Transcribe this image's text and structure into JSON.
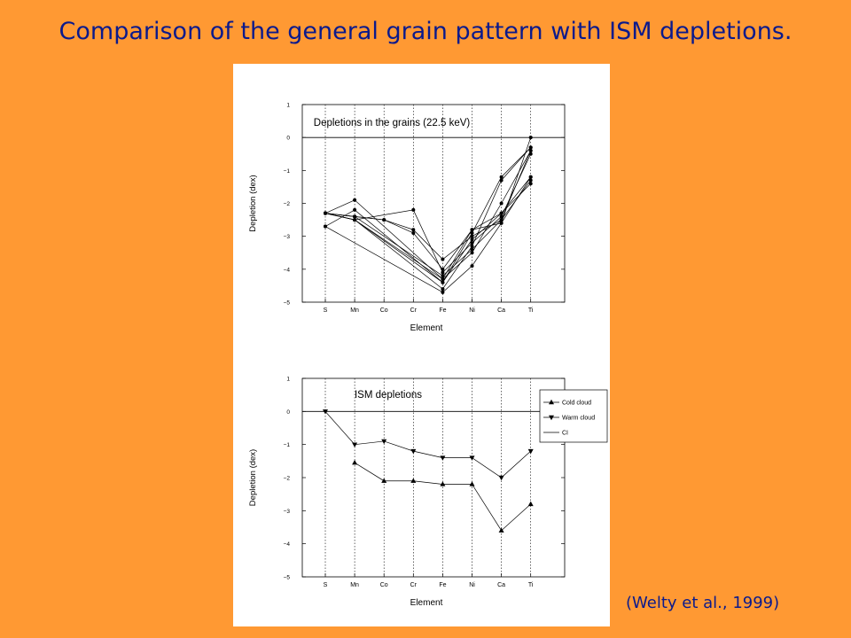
{
  "slide": {
    "title": "Comparison of the general grain pattern with ISM depletions.",
    "credit": "(Welty et al., 1999)",
    "background_color": "#FF9933",
    "text_color": "#0b1a8c"
  },
  "chart_data": [
    {
      "type": "line",
      "title": "Depletions in the grains (22.5 keV)",
      "xlabel": "Element",
      "ylabel": "Depletion (dex)",
      "categories": [
        "S",
        "Mn",
        "Co",
        "Cr",
        "Fe",
        "Ni",
        "Ca",
        "Ti"
      ],
      "ylim": [
        -5,
        1
      ],
      "yticks": [
        1,
        0,
        -1,
        -2,
        -3,
        -4,
        -5
      ],
      "reference_line": 0,
      "grid": "vertical dotted at categories",
      "series": [
        {
          "values": [
            -2.3,
            -1.9,
            null,
            null,
            -4.3,
            -2.8,
            -2.6,
            -1.2
          ]
        },
        {
          "values": [
            -2.7,
            -2.2,
            null,
            null,
            -4.4,
            -2.9,
            -1.2,
            -0.3
          ]
        },
        {
          "values": [
            -2.3,
            -2.4,
            -2.5,
            -2.8,
            -3.7,
            -3.0,
            -2.5,
            -0.4
          ]
        },
        {
          "values": [
            -2.3,
            -2.5,
            null,
            -2.2,
            -4.1,
            -3.2,
            -2.4,
            -0.5
          ]
        },
        {
          "values": [
            -2.3,
            -2.4,
            -2.5,
            -2.9,
            -4.0,
            -2.8,
            -2.3,
            -1.4
          ]
        },
        {
          "values": [
            -2.3,
            -2.5,
            null,
            null,
            -4.6,
            -3.3,
            -1.3,
            -0.3
          ]
        },
        {
          "values": [
            -2.3,
            -2.4,
            null,
            null,
            -4.2,
            -3.4,
            -2.5,
            -1.3
          ]
        },
        {
          "values": [
            -2.3,
            -2.5,
            null,
            null,
            -4.3,
            -3.5,
            -2.0,
            -0.4
          ]
        },
        {
          "values": [
            -2.7,
            null,
            null,
            null,
            -4.7,
            -3.9,
            -2.6,
            0.0
          ]
        },
        {
          "values": [
            -2.3,
            -2.5,
            null,
            null,
            -4.4,
            -3.1,
            -2.3,
            -1.2
          ]
        }
      ]
    },
    {
      "type": "line",
      "title": "ISM depletions",
      "xlabel": "Element",
      "ylabel": "Depletion (dex)",
      "categories": [
        "S",
        "Mn",
        "Co",
        "Cr",
        "Fe",
        "Ni",
        "Ca",
        "Ti"
      ],
      "ylim": [
        -5,
        1
      ],
      "yticks": [
        1,
        0,
        -1,
        -2,
        -3,
        -4,
        -5
      ],
      "reference_line": 0,
      "grid": "vertical dotted at categories",
      "legend_position": "top-right",
      "series": [
        {
          "name": "Cold cloud",
          "marker": "triangle-up",
          "values": [
            null,
            -1.55,
            -2.1,
            -2.1,
            -2.2,
            -2.2,
            -3.6,
            -2.8
          ]
        },
        {
          "name": "Warm cloud",
          "marker": "triangle-down",
          "values": [
            0.0,
            -1.0,
            -0.9,
            -1.2,
            -1.4,
            -1.4,
            -2.0,
            -1.2
          ]
        },
        {
          "name": "CI",
          "marker": "none",
          "values": [
            0,
            0,
            0,
            0,
            0,
            0,
            0,
            0
          ]
        }
      ]
    }
  ]
}
